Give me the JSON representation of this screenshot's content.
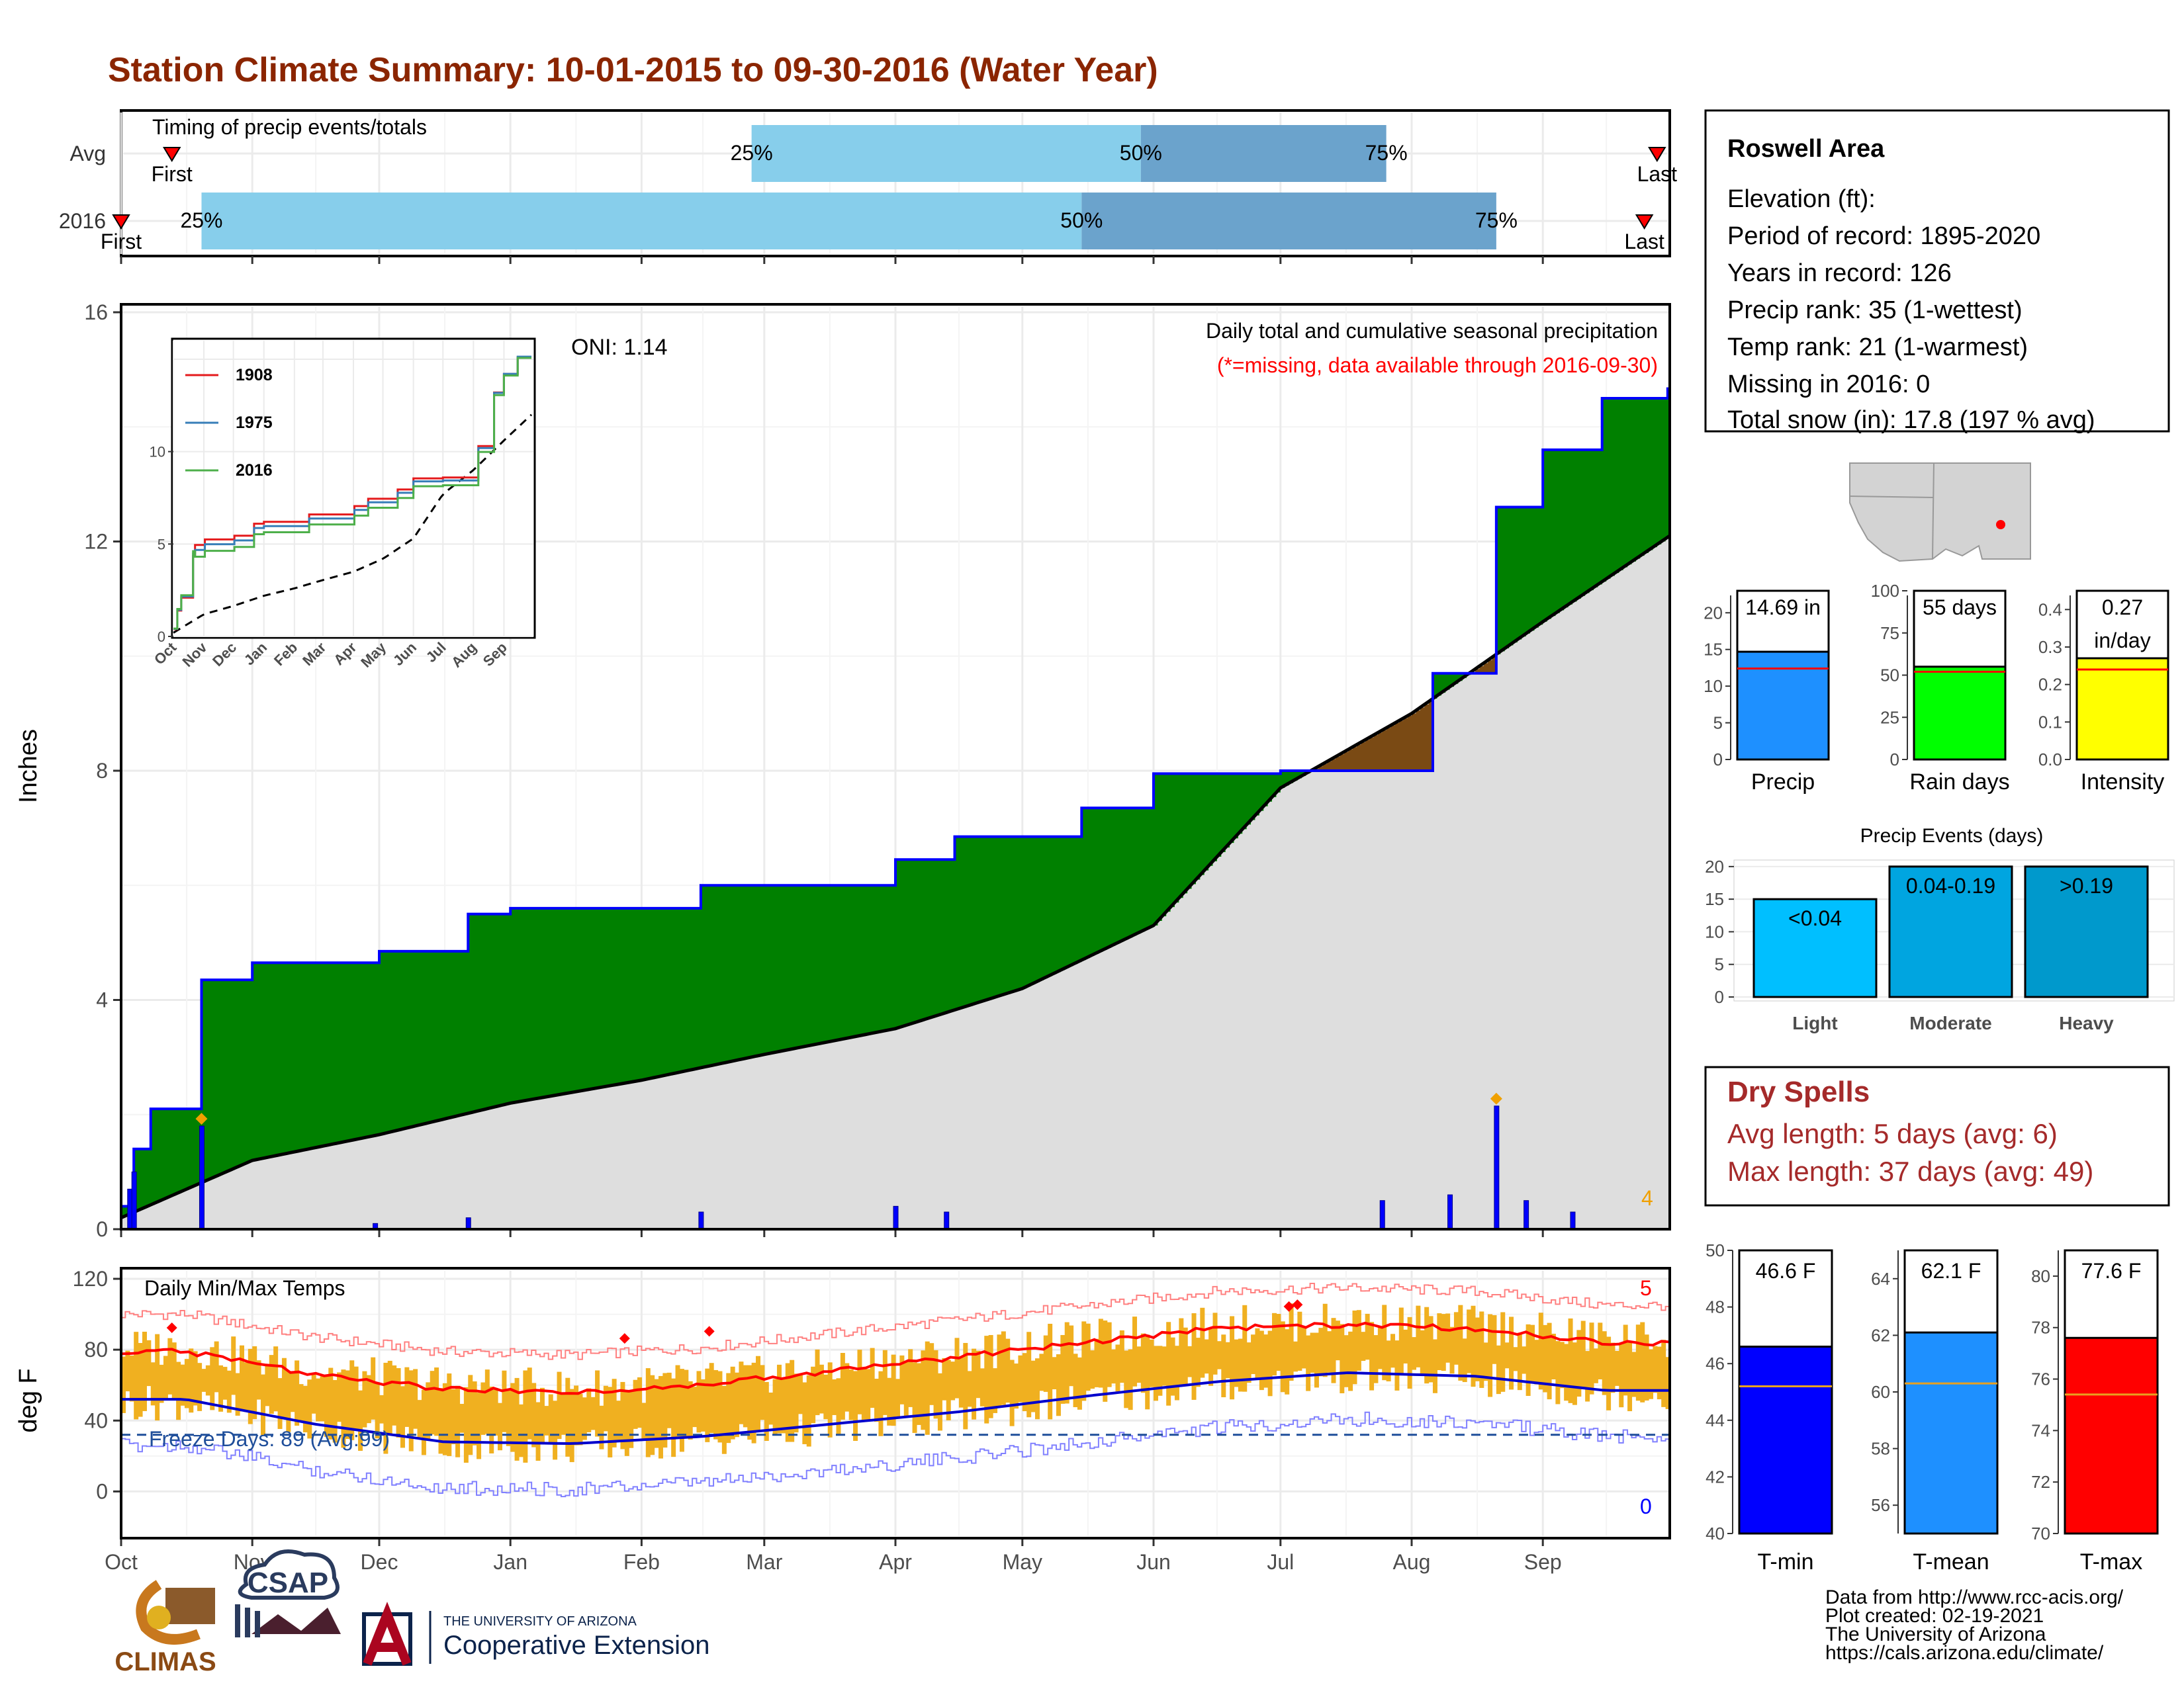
{
  "title": "Station Climate Summary: 10-01-2015 to 09-30-2016 (Water Year)",
  "timing_panel": {
    "label": "Timing of precip events/totals",
    "rows": [
      "Avg",
      "2016"
    ],
    "first_label": "First",
    "last_label": "Last",
    "pct_labels": [
      "25%",
      "50%",
      "75%"
    ],
    "avg": {
      "first": "Oct 13",
      "p25": "Feb 27",
      "p50": "May 29",
      "p75": "Jul 26",
      "last": "Sep 28"
    },
    "y2016": {
      "first": "Oct 1",
      "p25": "Oct 20",
      "p50": "May 15",
      "p75": "Aug 21",
      "last": "Sep 25"
    }
  },
  "precip_panel": {
    "ylabel": "Inches",
    "yticks": [
      "0",
      "4",
      "8",
      "12",
      "16"
    ],
    "ylim": [
      0,
      16
    ],
    "oni": "ONI: 1.14",
    "label": "Daily total and cumulative seasonal precipitation",
    "missing_note": "(*=missing, data available through 2016-09-30)",
    "count_label": "4"
  },
  "inset": {
    "yticks": [
      "0",
      "5",
      "10"
    ],
    "months": [
      "Oct",
      "Nov",
      "Dec",
      "Jan",
      "Feb",
      "Mar",
      "Apr",
      "May",
      "Jun",
      "Jul",
      "Aug",
      "Sep"
    ],
    "legend": [
      "1908",
      "1975",
      "2016"
    ]
  },
  "temp_panel": {
    "ylabel": "deg F",
    "yticks": [
      "0",
      "40",
      "80",
      "120"
    ],
    "label": "Daily Min/Max Temps",
    "freeze": "Freeze Days: 89 (Avg:99)",
    "count_high": "5",
    "count_low": "0",
    "months": [
      "Oct",
      "Nov",
      "Dec",
      "Jan",
      "Feb",
      "Mar",
      "Apr",
      "May",
      "Jun",
      "Jul",
      "Aug",
      "Sep"
    ]
  },
  "station": {
    "name": "Roswell Area",
    "elevation": "Elevation (ft):",
    "period": "Period of record: 1895-2020",
    "years": "Years in record: 126",
    "precip_rank": "Precip rank: 35 (1-wettest)",
    "temp_rank": "Temp rank: 21 (1-warmest)",
    "missing": "Missing in 2016: 0",
    "snow": "Total snow (in): 17.8 (197 % avg)"
  },
  "bar_stats": {
    "precip": {
      "label": "Precip",
      "value_text": "14.69 in",
      "value": 14.69,
      "avg": 12.4,
      "ymax": 23,
      "yticks": [
        "0",
        "5",
        "10",
        "15",
        "20"
      ]
    },
    "rain_days": {
      "label": "Rain days",
      "value_text": "55 days",
      "value": 55,
      "avg": 52,
      "ymax": 100,
      "yticks": [
        "0",
        "25",
        "50",
        "75",
        "100"
      ]
    },
    "intensity": {
      "label": "Intensity",
      "value_text_1": "0.27",
      "value_text_2": "in/day",
      "value": 0.27,
      "avg": 0.24,
      "ymax": 0.45,
      "yticks": [
        "0.0",
        "0.1",
        "0.2",
        "0.3",
        "0.4"
      ]
    }
  },
  "precip_events": {
    "title": "Precip Events (days)",
    "yticks": [
      "0",
      "5",
      "10",
      "15",
      "20"
    ],
    "bars": [
      {
        "name": "Light",
        "tag": "<0.04",
        "value": 15
      },
      {
        "name": "Moderate",
        "tag": "0.04-0.19",
        "value": 20
      },
      {
        "name": "Heavy",
        "tag": ">0.19",
        "value": 20
      }
    ]
  },
  "dry_spells": {
    "title": "Dry Spells",
    "avg": "Avg length: 5 days (avg: 6)",
    "max": "Max length: 37 days (avg: 49)"
  },
  "temp_stats": [
    {
      "label": "T-min",
      "value_text": "46.6 F",
      "value": 46.6,
      "avg": 45.2,
      "min": 40,
      "max": 50,
      "yticks": [
        "40",
        "42",
        "44",
        "46",
        "48",
        "50"
      ]
    },
    {
      "label": "T-mean",
      "value_text": "62.1 F",
      "value": 62.1,
      "avg": 60.3,
      "min": 55,
      "max": 65,
      "yticks": [
        "56",
        "58",
        "60",
        "62",
        "64"
      ]
    },
    {
      "label": "T-max",
      "value_text": "77.6 F",
      "value": 77.6,
      "avg": 75.4,
      "min": 70,
      "max": 81,
      "yticks": [
        "70",
        "72",
        "74",
        "76",
        "78",
        "80"
      ]
    }
  ],
  "credits": {
    "line1": "Data from http://www.rcc-acis.org/",
    "line2": "Plot created: 02-19-2021",
    "line3": "The University of Arizona",
    "line4": "https://cals.arizona.edu/climate/"
  },
  "logos": {
    "climas": "CLIMAS",
    "csap": "CSAP",
    "ua_small": "THE UNIVERSITY OF ARIZONA",
    "ua_big": "Cooperative Extension"
  },
  "colors": {
    "title": "#8b2500",
    "green": "#008000",
    "gray": "#dedede",
    "blue": "#0000ff",
    "light_blue": "#87ceeb",
    "mid_blue": "#6ba3cc",
    "orange": "#f0b020",
    "red": "#ff0000",
    "dry_red": "#a52a2a"
  },
  "chart_data": {
    "type": "area",
    "cumulative_2016": {
      "x": [
        "Oct 1",
        "Oct 4",
        "Oct 8",
        "Oct 20",
        "Nov 1",
        "Dec 1",
        "Dec 22",
        "Jan 1",
        "Feb 15",
        "Apr 1",
        "Apr 15",
        "May 15",
        "Jun 1",
        "Jul 1",
        "Aug 6",
        "Aug 21",
        "Sep 1",
        "Sep 15",
        "Sep 30"
      ],
      "y": [
        0.4,
        1.4,
        2.1,
        4.35,
        4.65,
        4.85,
        5.5,
        5.6,
        6.0,
        6.45,
        6.85,
        7.35,
        7.95,
        8.0,
        9.7,
        12.6,
        13.6,
        14.5,
        14.69
      ]
    },
    "cumulative_avg": {
      "x": [
        "Oct 1",
        "Nov 1",
        "Dec 1",
        "Jan 1",
        "Feb 1",
        "Mar 1",
        "Apr 1",
        "May 1",
        "Jun 1",
        "Jul 1",
        "Aug 1",
        "Sep 1",
        "Sep 30"
      ],
      "y": [
        0.2,
        1.2,
        1.65,
        2.2,
        2.6,
        3.05,
        3.5,
        4.2,
        5.3,
        7.7,
        9.0,
        10.6,
        12.1
      ]
    },
    "daily_precip": {
      "x": [
        "Oct 3",
        "Oct 4",
        "Oct 20",
        "Nov 30",
        "Dec 22",
        "Feb 15",
        "Apr 1",
        "Apr 13",
        "Jul 25",
        "Aug 10",
        "Aug 21",
        "Aug 28",
        "Sep 8"
      ],
      "y": [
        0.7,
        1.0,
        1.8,
        0.1,
        0.2,
        0.3,
        0.4,
        0.3,
        0.5,
        0.6,
        2.15,
        0.5,
        0.3
      ]
    },
    "temp_normal_max": {
      "x": [
        "Oct",
        "Nov",
        "Dec",
        "Jan",
        "Feb",
        "Mar",
        "Apr",
        "May",
        "Jun",
        "Jul",
        "Aug",
        "Sep"
      ],
      "y": [
        79,
        66,
        58,
        56,
        60,
        68,
        76,
        84,
        92,
        94,
        92,
        84
      ]
    },
    "temp_normal_min": {
      "x": [
        "Oct",
        "Nov",
        "Dec",
        "Jan",
        "Feb",
        "Mar",
        "Apr",
        "May",
        "Jun",
        "Jul",
        "Aug",
        "Sep"
      ],
      "y": [
        52,
        38,
        28,
        27,
        31,
        38,
        45,
        54,
        62,
        67,
        65,
        57
      ]
    }
  }
}
